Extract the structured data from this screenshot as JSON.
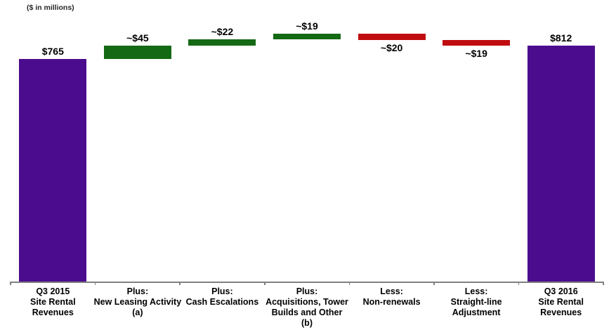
{
  "chart_data": {
    "type": "waterfall",
    "title": "",
    "units_note": "($ in millions)",
    "xlabel": "",
    "ylabel": "",
    "gridlines": false,
    "legend": null,
    "baseline_value": 0,
    "steps": [
      {
        "category": [
          "Q3 2015",
          "Site Rental",
          "Revenues"
        ],
        "label": "$765",
        "value": 765,
        "kind": "total"
      },
      {
        "category": [
          "Plus:",
          "New Leasing Activity",
          "(a)"
        ],
        "label": "~$45",
        "value": 45,
        "kind": "increase"
      },
      {
        "category": [
          "Plus:",
          "Cash Escalations"
        ],
        "label": "~$22",
        "value": 22,
        "kind": "increase"
      },
      {
        "category": [
          "Plus:",
          "Acquisitions, Tower",
          "Builds and Other",
          "(b)"
        ],
        "label": "~$19",
        "value": 19,
        "kind": "increase"
      },
      {
        "category": [
          "Less:",
          "Non-renewals"
        ],
        "label": "~$20",
        "value": -20,
        "kind": "decrease"
      },
      {
        "category": [
          "Less:",
          "Straight-line",
          "Adjustment"
        ],
        "label": "~$19",
        "value": -19,
        "kind": "decrease"
      },
      {
        "category": [
          "Q3 2016",
          "Site Rental",
          "Revenues"
        ],
        "label": "$812",
        "value": 812,
        "kind": "total"
      }
    ],
    "colors": {
      "total": "#4C0C8E",
      "increase": "#146914",
      "decrease": "#C00C10",
      "axis": "#808080",
      "text": "#000000"
    }
  }
}
